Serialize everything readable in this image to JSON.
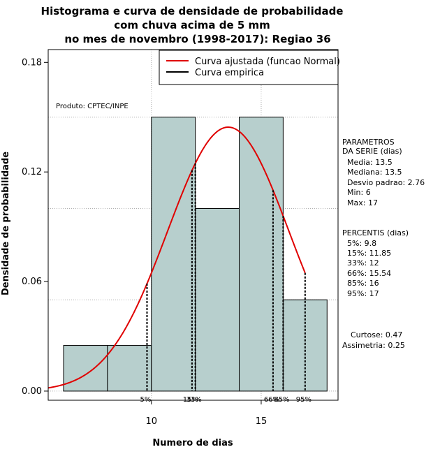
{
  "chart_data": {
    "type": "bar",
    "title_lines": [
      "Histograma e curva de densidade de probabilidade",
      "com chuva acima de 5 mm",
      "no mes de novembro (1998-2017): Regiao 36"
    ],
    "xlabel": "Numero de dias",
    "ylabel": "Densidade de probabilidade",
    "xlim": [
      5.3,
      18.5
    ],
    "ylim": [
      -0.005,
      0.187
    ],
    "x_ticks": [
      10,
      15
    ],
    "y_ticks": [
      0.0,
      0.06,
      0.12,
      0.18
    ],
    "y_tick_labels": [
      "0.00",
      "0.06",
      "0.12",
      "0.18"
    ],
    "grid_x": [
      10,
      15
    ],
    "grid_y": [
      0.05,
      0.1,
      0.15
    ],
    "bins": [
      {
        "from": 6,
        "to": 8,
        "density": 0.025
      },
      {
        "from": 8,
        "to": 10,
        "density": 0.025
      },
      {
        "from": 10,
        "to": 12,
        "density": 0.15
      },
      {
        "from": 12,
        "to": 14,
        "density": 0.1
      },
      {
        "from": 14,
        "to": 16,
        "density": 0.15
      },
      {
        "from": 16,
        "to": 18,
        "density": 0.05
      }
    ],
    "bar_color": "#b7cfcd",
    "curve_color": "#e00000",
    "normal_mean": 13.5,
    "normal_sd": 2.76,
    "curve_range": [
      5.3,
      17
    ],
    "percentile_lines": [
      {
        "label": "5%",
        "x": 9.8
      },
      {
        "label": "15%",
        "x": 11.85
      },
      {
        "label": "33%",
        "x": 12
      },
      {
        "label": "66%",
        "x": 15.54
      },
      {
        "label": "85%",
        "x": 16
      },
      {
        "label": "95%",
        "x": 17
      }
    ],
    "legend": {
      "placement": "top-right",
      "entries": [
        {
          "label": "Curva ajustada (funcao Normal)",
          "color": "#e00000"
        },
        {
          "label": "Curva empirica",
          "color": "#000000"
        }
      ]
    },
    "annotation": "Produto: CPTEC/INPE"
  },
  "stats": {
    "params_title_1": "PARAMETROS",
    "params_title_2": "DA SERIE (dias)",
    "media": "Media: 13.5",
    "mediana": "Mediana: 13.5",
    "desvio": "Desvio padrao: 2.76",
    "min": "Min: 6",
    "max": "Max: 17",
    "percentis_title": "PERCENTIS (dias)",
    "p5": "5%: 9.8",
    "p15": "15%: 11.85",
    "p33": "33%: 12",
    "p66": "66%: 15.54",
    "p85": "85%: 16",
    "p95": "95%: 17",
    "curtose": "Curtose: 0.47",
    "assimetria": "Assimetria: 0.25"
  }
}
